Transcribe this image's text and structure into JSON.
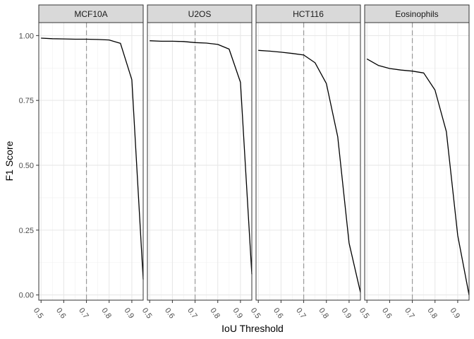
{
  "chart_data": {
    "type": "line",
    "layout": "facets",
    "xlabel": "IoU Threshold",
    "ylabel": "F1 Score",
    "x_ticks": [
      0.5,
      0.6,
      0.7,
      0.8,
      0.9
    ],
    "x_tick_labels": [
      "0.5",
      "0.6",
      "0.7",
      "0.8",
      "0.9"
    ],
    "y_ticks": [
      0,
      0.25,
      0.5,
      0.75,
      1
    ],
    "y_tick_labels": [
      "0.00",
      "0.25",
      "0.50",
      "0.75",
      "1.00"
    ],
    "xlim": [
      0.49,
      0.95
    ],
    "ylim": [
      -0.02,
      1.05
    ],
    "reference_line_x": 0.7,
    "grid": true,
    "line_color": "#000000",
    "reference_line_color": "#999999",
    "panels": [
      {
        "title": "MCF10A",
        "x": [
          0.5,
          0.55,
          0.6,
          0.65,
          0.7,
          0.75,
          0.8,
          0.85,
          0.9,
          0.95
        ],
        "y": [
          0.99,
          0.988,
          0.987,
          0.986,
          0.986,
          0.985,
          0.983,
          0.97,
          0.83,
          0.06
        ]
      },
      {
        "title": "U2OS",
        "x": [
          0.5,
          0.55,
          0.6,
          0.65,
          0.7,
          0.75,
          0.8,
          0.85,
          0.9,
          0.95
        ],
        "y": [
          0.98,
          0.978,
          0.978,
          0.977,
          0.973,
          0.971,
          0.966,
          0.948,
          0.82,
          0.08
        ]
      },
      {
        "title": "HCT116",
        "x": [
          0.5,
          0.55,
          0.6,
          0.65,
          0.7,
          0.75,
          0.8,
          0.85,
          0.9,
          0.95
        ],
        "y": [
          0.943,
          0.94,
          0.936,
          0.931,
          0.925,
          0.895,
          0.815,
          0.61,
          0.2,
          0.01
        ]
      },
      {
        "title": "Eosinophils",
        "x": [
          0.5,
          0.55,
          0.6,
          0.65,
          0.7,
          0.75,
          0.8,
          0.85,
          0.9,
          0.95
        ],
        "y": [
          0.91,
          0.885,
          0.873,
          0.867,
          0.863,
          0.856,
          0.79,
          0.63,
          0.23,
          0.0
        ]
      }
    ]
  }
}
